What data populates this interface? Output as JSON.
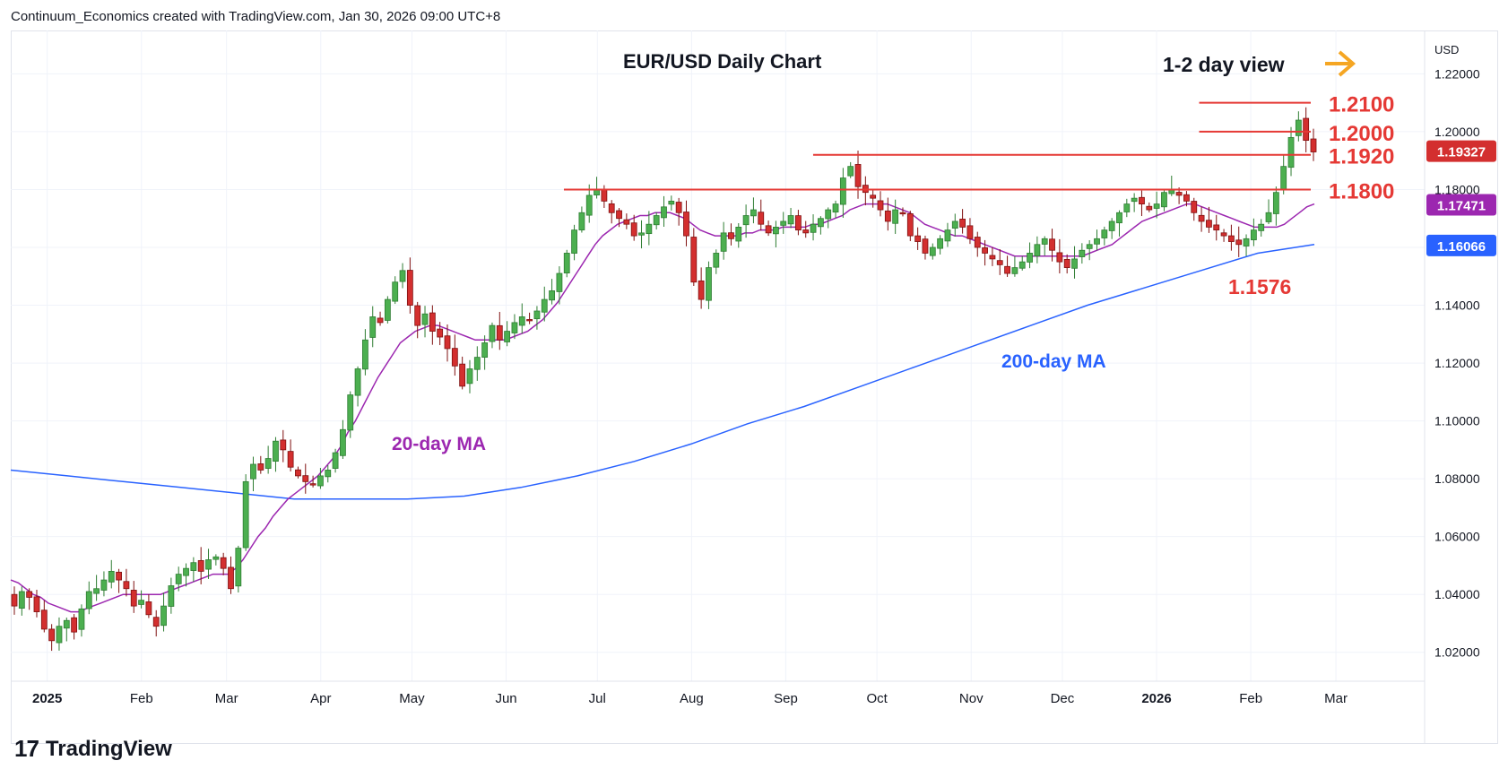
{
  "header": {
    "attribution": "Continuum_Economics created with TradingView.com, Jan 30, 2026 09:00 UTC+8"
  },
  "footer": {
    "brand": "TradingView",
    "logo_glyph": "17"
  },
  "colors": {
    "up": "#26a69a",
    "up_fill": "#4caf50",
    "down": "#d32f2f",
    "ma20": "#9c27b0",
    "ma200": "#2962ff",
    "level": "#e53935",
    "arrow": "#f5a623",
    "grid": "#f0f3fa",
    "axis_text": "#131722"
  },
  "chart_data": {
    "type": "candlestick",
    "title": "EUR/USD Daily Chart",
    "view_label": "1-2 day view",
    "view_icon": "arrow-right-icon",
    "currency": "USD",
    "ylim": [
      1.01,
      1.235
    ],
    "y_ticks": [
      "1.22000",
      "1.20000",
      "1.18000",
      "1.16000",
      "1.14000",
      "1.12000",
      "1.10000",
      "1.08000",
      "1.06000",
      "1.04000",
      "1.02000"
    ],
    "x_ticks": [
      "2025",
      "Feb",
      "Mar",
      "Apr",
      "May",
      "Jun",
      "Jul",
      "Aug",
      "Sep",
      "Oct",
      "Nov",
      "Dec",
      "2026",
      "Feb",
      "Mar"
    ],
    "price_tags": [
      {
        "label": "1.19327",
        "value": 1.19327,
        "color": "#d32f2f"
      },
      {
        "label": "1.17471",
        "value": 1.17471,
        "color": "#9c27b0"
      },
      {
        "label": "1.16066",
        "value": 1.16066,
        "color": "#2962ff"
      }
    ],
    "levels": [
      {
        "label": "1.2100",
        "value": 1.21,
        "from": "2026-01-15"
      },
      {
        "label": "1.2000",
        "value": 1.2,
        "from": "2026-01-15"
      },
      {
        "label": "1.1920",
        "value": 1.192,
        "from": "2025-09-10"
      },
      {
        "label": "1.1800",
        "value": 1.18,
        "from": "2025-06-20"
      }
    ],
    "annotations": [
      {
        "text": "1.1576",
        "color": "#e53935"
      },
      {
        "text": "20-day MA",
        "color": "#9c27b0"
      },
      {
        "text": "200-day MA",
        "color": "#2962ff"
      }
    ],
    "series": [
      {
        "name": "EUR/USD",
        "closes": [
          1.036,
          1.041,
          1.039,
          1.034,
          1.028,
          1.024,
          1.029,
          1.031,
          1.027,
          1.035,
          1.041,
          1.042,
          1.045,
          1.048,
          1.045,
          1.042,
          1.036,
          1.038,
          1.033,
          1.029,
          1.036,
          1.043,
          1.047,
          1.049,
          1.051,
          1.048,
          1.052,
          1.053,
          1.049,
          1.042,
          1.056,
          1.079,
          1.085,
          1.083,
          1.087,
          1.093,
          1.09,
          1.084,
          1.081,
          1.079,
          1.078,
          1.081,
          1.083,
          1.089,
          1.097,
          1.109,
          1.118,
          1.128,
          1.136,
          1.134,
          1.142,
          1.148,
          1.152,
          1.14,
          1.133,
          1.137,
          1.131,
          1.129,
          1.125,
          1.119,
          1.112,
          1.118,
          1.122,
          1.127,
          1.133,
          1.128,
          1.131,
          1.134,
          1.136,
          1.135,
          1.138,
          1.142,
          1.145,
          1.151,
          1.158,
          1.166,
          1.172,
          1.178,
          1.18,
          1.176,
          1.172,
          1.17,
          1.168,
          1.164,
          1.165,
          1.168,
          1.171,
          1.174,
          1.176,
          1.172,
          1.164,
          1.148,
          1.142,
          1.153,
          1.158,
          1.165,
          1.163,
          1.167,
          1.171,
          1.173,
          1.168,
          1.165,
          1.167,
          1.169,
          1.171,
          1.166,
          1.165,
          1.168,
          1.17,
          1.173,
          1.175,
          1.184,
          1.188,
          1.181,
          1.179,
          1.177,
          1.173,
          1.169,
          1.173,
          1.172,
          1.164,
          1.162,
          1.158,
          1.16,
          1.163,
          1.166,
          1.169,
          1.167,
          1.163,
          1.16,
          1.158,
          1.156,
          1.154,
          1.151,
          1.153,
          1.155,
          1.158,
          1.161,
          1.163,
          1.159,
          1.155,
          1.153,
          1.156,
          1.159,
          1.161,
          1.163,
          1.166,
          1.169,
          1.172,
          1.175,
          1.177,
          1.175,
          1.173,
          1.175,
          1.179,
          1.18,
          1.178,
          1.176,
          1.172,
          1.169,
          1.167,
          1.166,
          1.164,
          1.162,
          1.161,
          1.163,
          1.166,
          1.168,
          1.172,
          1.179,
          1.188,
          1.198,
          1.204,
          1.197,
          1.193
        ]
      },
      {
        "name": "20-day MA",
        "values": [
          1.045,
          1.044,
          1.042,
          1.04,
          1.039,
          1.037,
          1.036,
          1.035,
          1.034,
          1.034,
          1.035,
          1.036,
          1.037,
          1.038,
          1.039,
          1.04,
          1.04,
          1.04,
          1.04,
          1.04,
          1.04,
          1.041,
          1.042,
          1.043,
          1.044,
          1.045,
          1.046,
          1.047,
          1.047,
          1.047,
          1.049,
          1.052,
          1.056,
          1.06,
          1.063,
          1.067,
          1.07,
          1.073,
          1.075,
          1.077,
          1.079,
          1.081,
          1.084,
          1.087,
          1.091,
          1.096,
          1.1,
          1.105,
          1.11,
          1.115,
          1.119,
          1.123,
          1.127,
          1.129,
          1.131,
          1.132,
          1.133,
          1.133,
          1.132,
          1.131,
          1.13,
          1.129,
          1.128,
          1.128,
          1.128,
          1.128,
          1.128,
          1.129,
          1.13,
          1.131,
          1.133,
          1.135,
          1.138,
          1.141,
          1.145,
          1.149,
          1.153,
          1.157,
          1.161,
          1.164,
          1.166,
          1.168,
          1.169,
          1.17,
          1.171,
          1.171,
          1.172,
          1.172,
          1.172,
          1.171,
          1.17,
          1.168,
          1.166,
          1.165,
          1.164,
          1.164,
          1.164,
          1.164,
          1.165,
          1.165,
          1.166,
          1.166,
          1.166,
          1.167,
          1.167,
          1.167,
          1.167,
          1.168,
          1.168,
          1.169,
          1.17,
          1.171,
          1.173,
          1.174,
          1.175,
          1.175,
          1.175,
          1.175,
          1.174,
          1.173,
          1.172,
          1.17,
          1.168,
          1.167,
          1.166,
          1.165,
          1.164,
          1.164,
          1.163,
          1.162,
          1.161,
          1.16,
          1.159,
          1.158,
          1.157,
          1.157,
          1.157,
          1.157,
          1.157,
          1.157,
          1.157,
          1.157,
          1.157,
          1.157,
          1.158,
          1.159,
          1.16,
          1.161,
          1.163,
          1.165,
          1.167,
          1.169,
          1.17,
          1.171,
          1.172,
          1.173,
          1.174,
          1.175,
          1.175,
          1.174,
          1.173,
          1.172,
          1.171,
          1.17,
          1.169,
          1.168,
          1.167,
          1.167,
          1.167,
          1.167,
          1.168,
          1.17,
          1.172,
          1.174,
          1.175
        ]
      },
      {
        "name": "200-day MA",
        "values": [
          1.083,
          1.081,
          1.079,
          1.077,
          1.075,
          1.073,
          1.073,
          1.073,
          1.074,
          1.077,
          1.081,
          1.086,
          1.092,
          1.099,
          1.105,
          1.112,
          1.119,
          1.126,
          1.133,
          1.14,
          1.146,
          1.152,
          1.158,
          1.161
        ]
      }
    ]
  }
}
